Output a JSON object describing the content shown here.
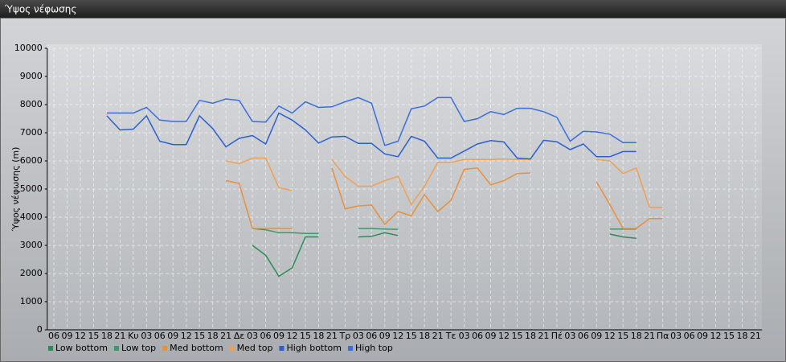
{
  "window_title": "Ύψος νέφωσης",
  "chart_data": {
    "type": "line",
    "ylabel": "Ύψος νέφωσης (m)",
    "categories": [
      "06",
      "09",
      "12",
      "15",
      "18",
      "21",
      "Κυ",
      "03",
      "06",
      "09",
      "12",
      "15",
      "18",
      "21",
      "Δε",
      "03",
      "06",
      "09",
      "12",
      "15",
      "18",
      "21",
      "Τρ",
      "03",
      "06",
      "09",
      "12",
      "15",
      "18",
      "21",
      "Τε",
      "03",
      "06",
      "09",
      "12",
      "15",
      "18",
      "21",
      "Πέ",
      "03",
      "06",
      "09",
      "12",
      "15",
      "18",
      "21",
      "Πα",
      "03",
      "06",
      "09",
      "12",
      "15",
      "18",
      "21"
    ],
    "ylim": [
      0,
      10000
    ],
    "yticks": [
      0,
      1000,
      2000,
      3000,
      4000,
      5000,
      6000,
      7000,
      8000,
      9000,
      10000
    ],
    "grid": true,
    "legend": "bottom-left",
    "series": [
      {
        "name": "Low bottom",
        "color": "#2e8b57",
        "values": [
          null,
          null,
          null,
          null,
          null,
          null,
          null,
          null,
          null,
          null,
          null,
          null,
          null,
          null,
          null,
          3000,
          2650,
          1900,
          2200,
          3300,
          3300,
          null,
          null,
          3300,
          3320,
          3450,
          3350,
          null,
          null,
          null,
          null,
          null,
          null,
          null,
          null,
          null,
          null,
          null,
          null,
          null,
          null,
          null,
          3400,
          3300,
          3250,
          null,
          null,
          null,
          null,
          null,
          null,
          null,
          null,
          null
        ]
      },
      {
        "name": "Low top",
        "color": "#3a9a6a",
        "values": [
          null,
          null,
          null,
          null,
          null,
          null,
          null,
          null,
          null,
          null,
          null,
          null,
          null,
          null,
          null,
          3600,
          3550,
          3450,
          3450,
          3420,
          3420,
          null,
          null,
          3600,
          3600,
          3580,
          3570,
          null,
          null,
          null,
          null,
          null,
          null,
          null,
          null,
          null,
          null,
          null,
          null,
          null,
          null,
          null,
          3580,
          3580,
          3580,
          null,
          null,
          null,
          null,
          null,
          null,
          null,
          null,
          null
        ]
      },
      {
        "name": "Med bottom",
        "color": "#e8903a",
        "values": [
          null,
          null,
          null,
          null,
          null,
          null,
          null,
          null,
          null,
          null,
          null,
          null,
          null,
          5300,
          5200,
          3600,
          3600,
          3600,
          3600,
          null,
          null,
          5750,
          4300,
          4400,
          4430,
          3750,
          4200,
          4050,
          4800,
          4200,
          4600,
          5700,
          5750,
          5150,
          5300,
          5550,
          5570,
          null,
          null,
          null,
          null,
          5250,
          4450,
          3600,
          3600,
          3950,
          3950,
          null,
          null,
          null,
          null,
          null,
          null,
          null
        ]
      },
      {
        "name": "Med top",
        "color": "#f0a050",
        "values": [
          null,
          null,
          null,
          null,
          null,
          null,
          null,
          null,
          null,
          null,
          null,
          null,
          null,
          6000,
          5900,
          6100,
          6100,
          5050,
          4950,
          null,
          null,
          6050,
          5450,
          5100,
          5100,
          5300,
          5450,
          4450,
          5100,
          5950,
          5950,
          6050,
          6050,
          6050,
          6070,
          6050,
          6050,
          null,
          null,
          null,
          null,
          6050,
          6000,
          5550,
          5750,
          4350,
          4350,
          null,
          null,
          null,
          null,
          null,
          null,
          null
        ]
      },
      {
        "name": "High bottom",
        "color": "#2b5fd0",
        "values": [
          null,
          null,
          null,
          null,
          7600,
          7100,
          7130,
          7600,
          6700,
          6580,
          6580,
          7600,
          7150,
          6500,
          6800,
          6900,
          6600,
          7700,
          7450,
          7100,
          6630,
          6850,
          6870,
          6620,
          6620,
          6250,
          6150,
          6870,
          6700,
          6100,
          6100,
          6350,
          6600,
          6720,
          6670,
          6100,
          6070,
          6730,
          6680,
          6400,
          6600,
          6150,
          6150,
          6330,
          6330,
          null,
          null,
          null,
          null,
          null,
          null,
          null,
          null,
          null
        ]
      },
      {
        "name": "High top",
        "color": "#3a6ee0",
        "values": [
          null,
          null,
          null,
          null,
          7700,
          7700,
          7700,
          7900,
          7450,
          7400,
          7400,
          8150,
          8050,
          8200,
          8150,
          7400,
          7380,
          7950,
          7700,
          8100,
          7900,
          7920,
          8100,
          8250,
          8050,
          6550,
          6700,
          7850,
          7950,
          8250,
          8250,
          7400,
          7500,
          7750,
          7650,
          7870,
          7870,
          7750,
          7550,
          6700,
          7050,
          7030,
          6950,
          6650,
          6650,
          null,
          null,
          null,
          null,
          null,
          null,
          null,
          null,
          null
        ]
      }
    ]
  }
}
